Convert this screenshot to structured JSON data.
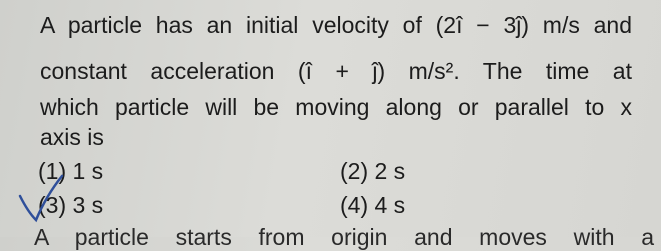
{
  "question": {
    "lines": [
      "A particle has an initial velocity of (2î − 3ĵ) m/s and",
      "constant acceleration (î + ĵ) m/s². The time at",
      "which particle will be moving along or parallel to x",
      "axis is"
    ]
  },
  "options": [
    "(1) 1 s",
    "(2) 2 s",
    "(3) 3 s",
    "(4) 4 s"
  ],
  "next_question": "A particle starts from origin and moves with a"
}
